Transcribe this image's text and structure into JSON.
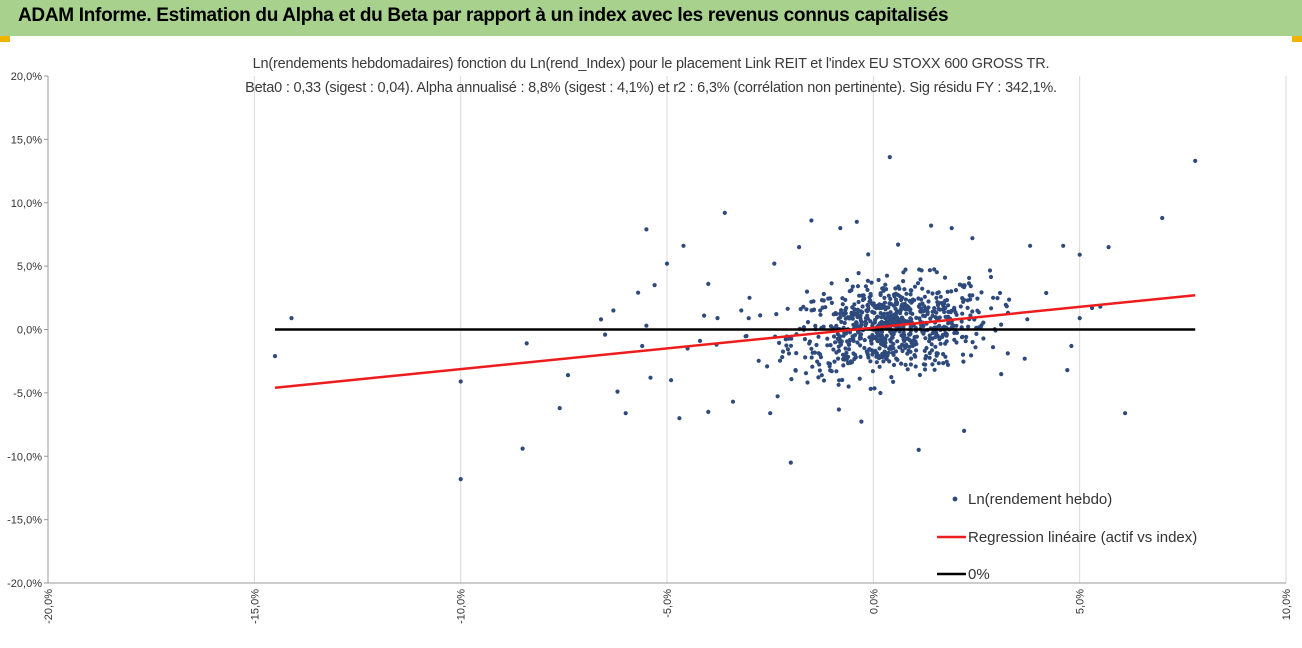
{
  "banner": {
    "title": "ADAM Informe. Estimation du Alpha et du Beta par rapport à un index avec les revenus connus capitalisés"
  },
  "chart_data": {
    "type": "scatter",
    "title": "Ln(rendements hebdomadaires) fonction du Ln(rend_Index) pour le placement Link REIT et l'index EU STOXX 600 GROSS TR.",
    "subtitle": "Beta0 : 0,33  (sigest : 0,04).  Alpha annualisé : 8,8% (sigest : 4,1%) et r2 : 6,3% (corrélation non pertinente). Sig résidu FY : 342,1%.",
    "xlim": [
      -0.2,
      0.1
    ],
    "ylim": [
      -0.2,
      0.2
    ],
    "x_ticks": [
      "-20,0%",
      "-15,0%",
      "-10,0%",
      "-5,0%",
      "0,0%",
      "5,0%",
      "10,0%"
    ],
    "y_ticks": [
      "20,0%",
      "15,0%",
      "10,0%",
      "5,0%",
      "0,0%",
      "-5,0%",
      "-10,0%",
      "-15,0%",
      "-20,0%"
    ],
    "grid": "vertical",
    "legend_position": "bottom-right",
    "series": [
      {
        "name": "Ln(rendement hebdo)",
        "kind": "points",
        "color": "#2e4a7d",
        "outliers": [
          [
            -0.145,
            -0.021
          ],
          [
            -0.141,
            0.009
          ],
          [
            -0.1,
            -0.118
          ],
          [
            -0.1,
            -0.041
          ],
          [
            -0.085,
            -0.094
          ],
          [
            -0.084,
            -0.011
          ],
          [
            -0.076,
            -0.062
          ],
          [
            -0.074,
            -0.036
          ],
          [
            -0.066,
            0.008
          ],
          [
            -0.065,
            -0.004
          ],
          [
            -0.063,
            0.015
          ],
          [
            -0.062,
            -0.049
          ],
          [
            -0.06,
            -0.066
          ],
          [
            -0.057,
            0.029
          ],
          [
            -0.056,
            -0.013
          ],
          [
            -0.055,
            0.079
          ],
          [
            -0.055,
            0.003
          ],
          [
            -0.054,
            -0.038
          ],
          [
            -0.053,
            0.035
          ],
          [
            -0.05,
            0.052
          ],
          [
            -0.049,
            -0.04
          ],
          [
            -0.047,
            -0.07
          ],
          [
            -0.046,
            0.066
          ],
          [
            -0.045,
            -0.015
          ],
          [
            -0.042,
            -0.009
          ],
          [
            -0.041,
            0.011
          ],
          [
            -0.04,
            0.036
          ],
          [
            -0.04,
            -0.065
          ],
          [
            -0.038,
            -0.012
          ],
          [
            -0.036,
            0.092
          ],
          [
            -0.034,
            -0.057
          ],
          [
            -0.032,
            0.015
          ],
          [
            -0.03,
            0.025
          ],
          [
            -0.025,
            -0.066
          ],
          [
            -0.024,
            0.052
          ],
          [
            -0.02,
            -0.105
          ],
          [
            -0.018,
            0.065
          ],
          [
            -0.015,
            0.086
          ],
          [
            -0.012,
            0.028
          ],
          [
            -0.008,
            0.08
          ],
          [
            -0.006,
            -0.045
          ],
          [
            -0.004,
            0.085
          ],
          [
            0.004,
            0.136
          ],
          [
            0.006,
            0.067
          ],
          [
            0.011,
            -0.095
          ],
          [
            0.014,
            0.082
          ],
          [
            0.019,
            0.08
          ],
          [
            0.022,
            -0.08
          ],
          [
            0.024,
            0.072
          ],
          [
            0.029,
            -0.014
          ],
          [
            0.038,
            0.066
          ],
          [
            0.046,
            0.066
          ],
          [
            0.047,
            -0.032
          ],
          [
            0.048,
            -0.013
          ],
          [
            0.05,
            0.059
          ],
          [
            0.05,
            0.009
          ],
          [
            0.053,
            0.017
          ],
          [
            0.055,
            0.018
          ],
          [
            0.057,
            0.065
          ],
          [
            0.061,
            -0.066
          ],
          [
            0.07,
            0.088
          ],
          [
            0.078,
            0.133
          ]
        ],
        "cluster": {
          "count": 800,
          "x_mean": 0.004,
          "x_sd": 0.012,
          "y_mean": 0.002,
          "y_sd": 0.018
        }
      },
      {
        "name": "Regression linéaire (actif vs index)",
        "kind": "line",
        "color": "#ee1c1c",
        "x": [
          -0.145,
          0.078
        ],
        "y": [
          -0.046,
          0.027
        ]
      },
      {
        "name": "0%",
        "kind": "line",
        "color": "#000000",
        "x": [
          -0.145,
          0.078
        ],
        "y": [
          0.0,
          0.0
        ]
      }
    ]
  }
}
